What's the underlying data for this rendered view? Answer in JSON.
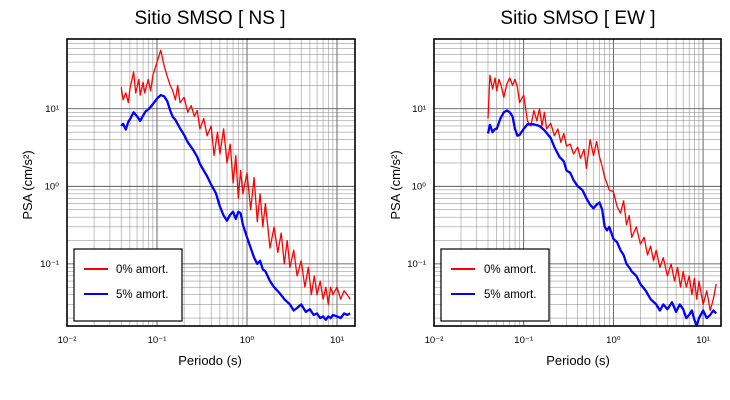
{
  "chart_data": [
    {
      "type": "line",
      "title": "Sitio SMSO [ NS ]",
      "xlabel": "Periodo (s)",
      "ylabel": "PSA (cm/s²)",
      "xscale": "log",
      "yscale": "log",
      "xlim": [
        0.01,
        15.85
      ],
      "ylim": [
        0.0158,
        79.4
      ],
      "x_ticks": [
        "10⁻²",
        "10⁻¹",
        "10⁰",
        "10¹"
      ],
      "y_ticks": [
        "10⁻¹",
        "10⁰",
        "10¹"
      ],
      "grid": true,
      "legend_position": "bottom-left",
      "series": [
        {
          "name": "0% amort.",
          "color": "#ff0000",
          "x": [
            0.04,
            0.042,
            0.045,
            0.048,
            0.05,
            0.055,
            0.058,
            0.063,
            0.065,
            0.07,
            0.073,
            0.08,
            0.085,
            0.09,
            0.1,
            0.11,
            0.12,
            0.13,
            0.14,
            0.15,
            0.16,
            0.17,
            0.18,
            0.2,
            0.22,
            0.24,
            0.26,
            0.28,
            0.3,
            0.33,
            0.36,
            0.4,
            0.43,
            0.47,
            0.5,
            0.55,
            0.6,
            0.65,
            0.7,
            0.75,
            0.8,
            0.85,
            0.9,
            1.0,
            1.1,
            1.2,
            1.3,
            1.4,
            1.5,
            1.6,
            1.8,
            2.0,
            2.2,
            2.4,
            2.6,
            2.8,
            3.0,
            3.3,
            3.6,
            4.0,
            4.4,
            4.8,
            5.2,
            5.6,
            6.0,
            6.5,
            7.0,
            7.5,
            8.0,
            8.5,
            9.0,
            10.0,
            11.0,
            12.0,
            13.0,
            14.0
          ],
          "y": [
            19,
            13,
            16,
            12,
            18,
            30,
            16,
            24,
            15,
            22,
            16,
            24,
            17,
            27,
            40,
            57,
            36,
            26,
            20,
            17,
            13,
            20,
            12,
            14,
            9,
            11,
            8,
            9.5,
            5.5,
            7.5,
            4.5,
            6,
            2.5,
            5,
            2.6,
            5.5,
            2,
            3.5,
            1.1,
            2.5,
            0.7,
            1.6,
            0.8,
            1.5,
            0.5,
            1.3,
            0.35,
            0.8,
            0.3,
            0.6,
            0.16,
            0.3,
            0.14,
            0.25,
            0.1,
            0.2,
            0.09,
            0.15,
            0.07,
            0.11,
            0.05,
            0.09,
            0.04,
            0.07,
            0.04,
            0.06,
            0.035,
            0.05,
            0.03,
            0.05,
            0.04,
            0.05,
            0.035,
            0.045,
            0.04,
            0.035
          ]
        },
        {
          "name": "5% amort.",
          "color": "#0000ff",
          "x": [
            0.04,
            0.042,
            0.045,
            0.048,
            0.05,
            0.055,
            0.06,
            0.065,
            0.07,
            0.075,
            0.08,
            0.09,
            0.1,
            0.11,
            0.12,
            0.13,
            0.14,
            0.15,
            0.16,
            0.18,
            0.2,
            0.22,
            0.25,
            0.28,
            0.3,
            0.33,
            0.36,
            0.4,
            0.45,
            0.5,
            0.55,
            0.6,
            0.65,
            0.7,
            0.75,
            0.8,
            0.85,
            0.9,
            1.0,
            1.1,
            1.2,
            1.3,
            1.4,
            1.5,
            1.6,
            1.8,
            2.0,
            2.3,
            2.6,
            3.0,
            3.3,
            3.6,
            4.0,
            4.5,
            5.0,
            5.5,
            6.0,
            6.5,
            7.0,
            7.5,
            8.0,
            8.5,
            9.0,
            10.0,
            11.0,
            12.0,
            13.0,
            14.0
          ],
          "y": [
            6,
            6.4,
            5.4,
            6.8,
            7.3,
            9,
            8,
            7,
            8.2,
            9.3,
            9.8,
            11.5,
            13.5,
            15,
            14.5,
            12.5,
            9.5,
            7.8,
            7.2,
            5.6,
            4.6,
            3.7,
            3,
            2.4,
            1.95,
            1.6,
            1.35,
            1.05,
            0.82,
            0.55,
            0.42,
            0.36,
            0.43,
            0.47,
            0.38,
            0.47,
            0.45,
            0.32,
            0.22,
            0.16,
            0.12,
            0.1,
            0.11,
            0.085,
            0.08,
            0.06,
            0.05,
            0.042,
            0.035,
            0.03,
            0.025,
            0.027,
            0.03,
            0.024,
            0.026,
            0.022,
            0.023,
            0.02,
            0.021,
            0.019,
            0.021,
            0.02,
            0.022,
            0.021,
            0.02,
            0.023,
            0.022,
            0.023
          ]
        }
      ]
    },
    {
      "type": "line",
      "title": "Sitio SMSO [ EW ]",
      "xlabel": "Periodo (s)",
      "ylabel": "PSA (cm/s²)",
      "xscale": "log",
      "yscale": "log",
      "xlim": [
        0.01,
        15.85
      ],
      "ylim": [
        0.0158,
        79.4
      ],
      "x_ticks": [
        "10⁻²",
        "10⁻¹",
        "10⁰",
        "10¹"
      ],
      "y_ticks": [
        "10⁻¹",
        "10⁰",
        "10¹"
      ],
      "grid": true,
      "legend_position": "bottom-left",
      "series": [
        {
          "name": "0% amort.",
          "color": "#ff0000",
          "x": [
            0.04,
            0.042,
            0.045,
            0.048,
            0.05,
            0.053,
            0.056,
            0.06,
            0.065,
            0.07,
            0.075,
            0.08,
            0.085,
            0.09,
            0.1,
            0.11,
            0.12,
            0.13,
            0.14,
            0.15,
            0.16,
            0.17,
            0.18,
            0.2,
            0.22,
            0.24,
            0.26,
            0.28,
            0.3,
            0.33,
            0.36,
            0.4,
            0.43,
            0.47,
            0.5,
            0.55,
            0.6,
            0.65,
            0.7,
            0.75,
            0.8,
            0.9,
            1.0,
            1.1,
            1.2,
            1.3,
            1.4,
            1.5,
            1.6,
            1.8,
            2.0,
            2.2,
            2.4,
            2.6,
            2.8,
            3.0,
            3.3,
            3.6,
            4.0,
            4.4,
            4.8,
            5.2,
            5.6,
            6.0,
            6.5,
            7.0,
            7.5,
            8.0,
            8.5,
            9.0,
            10.0,
            11.0,
            12.0,
            13.0,
            14.0
          ],
          "y": [
            7.5,
            27,
            18,
            25,
            17,
            24,
            20,
            14,
            21,
            25,
            20,
            24,
            19,
            12,
            15,
            7,
            6,
            9.5,
            7,
            10,
            6,
            9,
            5.5,
            6.5,
            4.5,
            5.5,
            3.7,
            4.8,
            3.3,
            3.5,
            2.6,
            3.2,
            2.3,
            3,
            1.7,
            4,
            2.5,
            3.8,
            2.4,
            1.8,
            1.3,
            0.9,
            0.85,
            0.55,
            0.45,
            0.65,
            0.32,
            0.42,
            0.22,
            0.3,
            0.18,
            0.22,
            0.13,
            0.17,
            0.11,
            0.15,
            0.09,
            0.12,
            0.07,
            0.1,
            0.06,
            0.09,
            0.05,
            0.08,
            0.05,
            0.07,
            0.04,
            0.065,
            0.035,
            0.06,
            0.03,
            0.045,
            0.025,
            0.035,
            0.055
          ]
        },
        {
          "name": "5% amort.",
          "color": "#0000ff",
          "x": [
            0.04,
            0.042,
            0.045,
            0.048,
            0.05,
            0.055,
            0.06,
            0.065,
            0.07,
            0.075,
            0.08,
            0.085,
            0.09,
            0.1,
            0.11,
            0.12,
            0.13,
            0.15,
            0.17,
            0.2,
            0.22,
            0.25,
            0.28,
            0.3,
            0.33,
            0.36,
            0.4,
            0.45,
            0.5,
            0.55,
            0.6,
            0.65,
            0.7,
            0.75,
            0.8,
            0.85,
            0.9,
            1.0,
            1.1,
            1.2,
            1.3,
            1.4,
            1.5,
            1.6,
            1.8,
            2.0,
            2.3,
            2.6,
            3.0,
            3.3,
            3.6,
            4.0,
            4.5,
            5.0,
            5.5,
            6.0,
            6.5,
            7.0,
            7.5,
            8.0,
            8.5,
            9.0,
            10.0,
            11.0,
            12.0,
            13.0,
            14.0
          ],
          "y": [
            4.8,
            6.2,
            5,
            5.5,
            5.5,
            7.5,
            9,
            9.5,
            9,
            8,
            5.5,
            4.5,
            4.6,
            5.5,
            6.3,
            6.3,
            6.3,
            6,
            5.3,
            4.2,
            3.2,
            2.4,
            2.1,
            1.6,
            1.5,
            1.2,
            1,
            0.9,
            0.7,
            0.58,
            0.52,
            0.58,
            0.62,
            0.5,
            0.3,
            0.27,
            0.3,
            0.21,
            0.19,
            0.15,
            0.13,
            0.1,
            0.09,
            0.08,
            0.07,
            0.055,
            0.045,
            0.035,
            0.03,
            0.025,
            0.03,
            0.026,
            0.032,
            0.024,
            0.03,
            0.026,
            0.02,
            0.022,
            0.025,
            0.019,
            0.016,
            0.02,
            0.025,
            0.02,
            0.022,
            0.025,
            0.023
          ]
        }
      ]
    }
  ]
}
